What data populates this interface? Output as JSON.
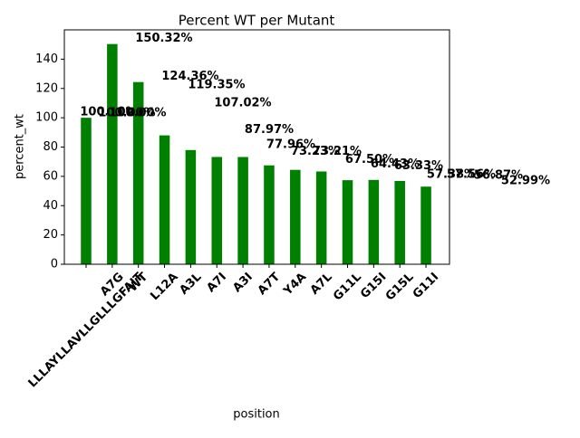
{
  "chart_data": {
    "type": "bar",
    "title": "Percent WT per Mutant",
    "x_label": "position",
    "y_label": "percent_wt",
    "categories": [
      "LLLAYLLAVLLGLLLGFAIT",
      "A7G",
      "WT",
      "L12A",
      "A3L",
      "A7I",
      "A3I",
      "A7T",
      "Y4A",
      "A7L",
      "G11L",
      "G15I",
      "G15L",
      "G11I"
    ],
    "values": [
      100,
      150.32,
      124.36,
      87.97,
      77.96,
      73.23,
      73.21,
      67.5,
      64.43,
      63.33,
      57.38,
      57.56,
      56.87,
      52.99
    ],
    "value_labels": [
      "100.00%",
      "150.32%",
      "124.36%",
      "87.97%",
      "77.96%",
      "73.23%",
      "73.21%",
      "67.50%",
      "64.43%",
      "63.33%",
      "57.38%",
      "57.56%",
      "56.87%",
      "52.99%"
    ],
    "annotations": [
      "100.00%",
      "100.00%",
      "119.35%",
      "107.02%"
    ],
    "color": "#008000",
    "ylim": [
      0,
      160
    ],
    "yticks": [
      0,
      20,
      40,
      60,
      80,
      100,
      120,
      140
    ],
    "grid": false
  }
}
